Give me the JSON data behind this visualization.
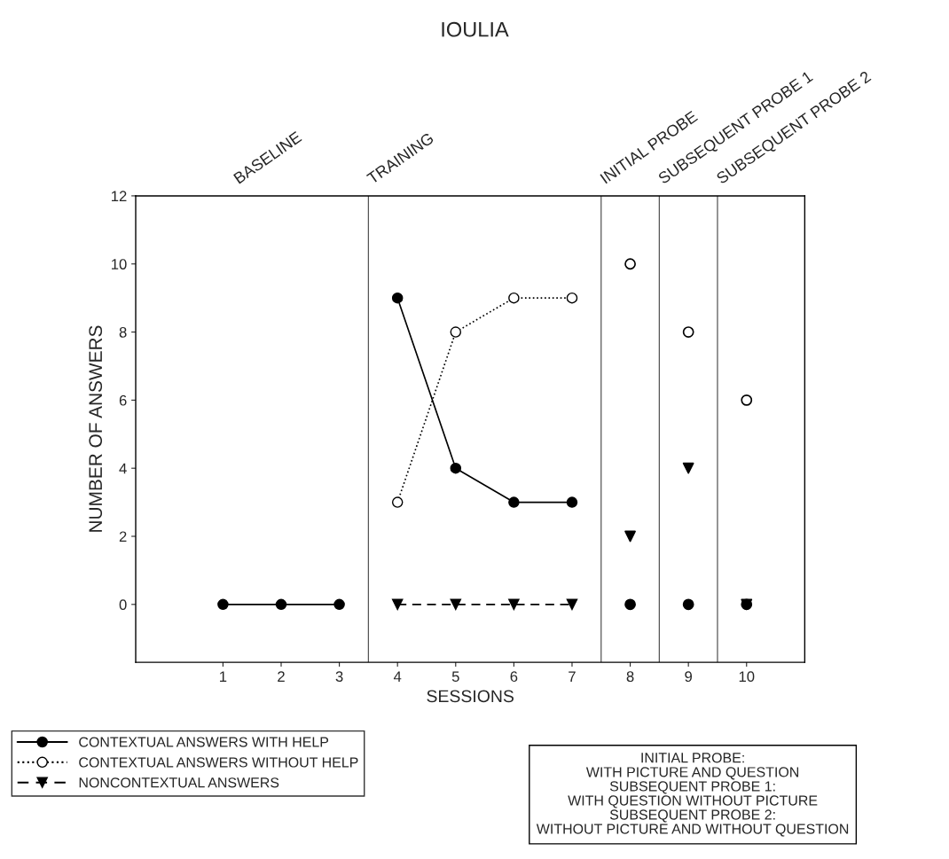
{
  "chart_data": {
    "type": "line",
    "title": "IOULIA",
    "xlabel": "SESSIONS",
    "ylabel": "NUMBER OF ANSWERS",
    "x": [
      1,
      2,
      3,
      4,
      5,
      6,
      7
    ],
    "series": [
      {
        "name": "CONTEXTUAL ANSWERS WITH HELP",
        "color": "#000000",
        "marker": "circle",
        "line_style": "solid",
        "values": [
          0,
          0,
          0,
          9,
          4,
          3,
          3
        ]
      },
      {
        "name": "CONTEXTUAL ANSWERS WITHOUT HELP",
        "color": "#000000",
        "marker": "circle",
        "line_style": "dotted",
        "values": [
          null,
          null,
          null,
          3,
          8,
          9,
          9
        ]
      },
      {
        "name": "NONCONTEXTUAL ANSWERS",
        "color": "#000000",
        "marker": "triangle",
        "line_style": "dashed",
        "values": [
          null,
          null,
          null,
          0,
          0,
          0,
          0
        ]
      },
      {
        "type": "scatter",
        "x": [
          8,
          9,
          10
        ],
        "color": "#000000",
        "marker": "circle",
        "line_style": "solid",
        "values": [
          0,
          0,
          0
        ]
      },
      {
        "type": "scatter",
        "x": [
          8,
          9,
          10
        ],
        "color": "#000000",
        "marker": "circle",
        "line_style": "dotted",
        "values": [
          10,
          8,
          6
        ]
      },
      {
        "type": "scatter",
        "x": [
          8,
          9,
          10
        ],
        "color": "#000000",
        "marker": "triangle",
        "line_style": "dashed",
        "values": [
          2,
          4,
          0
        ]
      }
    ],
    "ref_lines": [
      {
        "axis": "x",
        "value": 3.5,
        "label": "TRAINING",
        "color": "#555555"
      },
      {
        "axis": "x",
        "value": 7.5,
        "label": "INITIAL PROBE",
        "color": "#555555"
      },
      {
        "axis": "x",
        "value": 8.5,
        "label": "SUBSEQUENT PROBE 1",
        "color": "#555555"
      },
      {
        "axis": "x",
        "value": 9.5,
        "label": "SUBSEQUENT PROBE 2",
        "color": "#555555"
      }
    ],
    "xlim": [
      -0.5,
      11
    ],
    "xticks": [
      1,
      2,
      3,
      4,
      5,
      6,
      7,
      8,
      9,
      10
    ],
    "ylim": [
      -1.7,
      12
    ],
    "yticks": [
      0,
      2,
      4,
      6,
      8,
      10,
      12
    ],
    "grid": false,
    "legend": "bottom left",
    "annotations": [
      "BASELINE",
      "INITIAL PROBE:\nWITH PICTURE AND QUESTION\nSUBSEQUENT PROBE 1:\nWITH QUESTION WITHOUT PICTURE\nSUBSEQUENT PROBE 2:\nWITHOUT PICTURE AND WITHOUT QUESTION"
    ]
  }
}
